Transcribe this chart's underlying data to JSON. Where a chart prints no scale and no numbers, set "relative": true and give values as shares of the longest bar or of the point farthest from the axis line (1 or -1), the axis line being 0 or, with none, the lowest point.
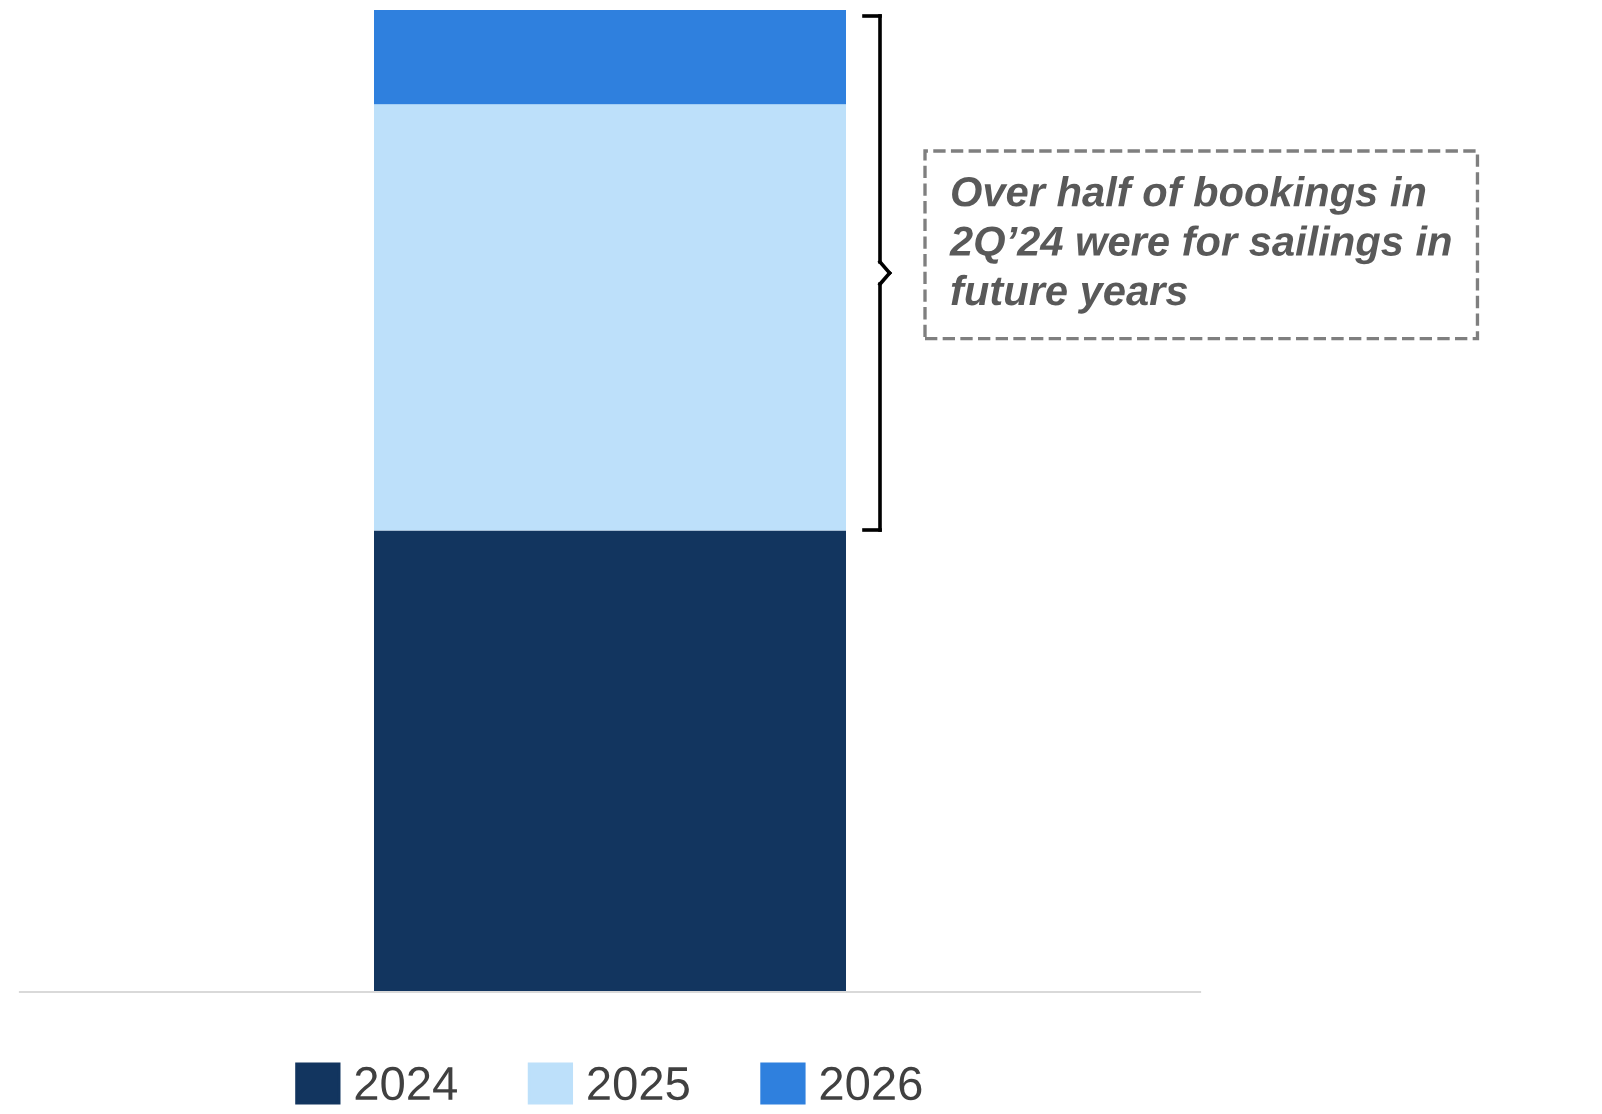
{
  "chart_data": {
    "type": "bar",
    "stacked": true,
    "relative": true,
    "categories": [
      null
    ],
    "series": [
      {
        "name": "2024",
        "color": "#12355f",
        "values": [
          0.47
        ]
      },
      {
        "name": "2025",
        "color": "#bde0fa",
        "values": [
          0.434
        ]
      },
      {
        "name": "2026",
        "color": "#2f80de",
        "values": [
          0.096
        ]
      }
    ],
    "annotations": [
      "Over half of bookings in\n2Q’24 were for sailings in\nfuture years"
    ],
    "legend": "bottom",
    "grid": false
  }
}
